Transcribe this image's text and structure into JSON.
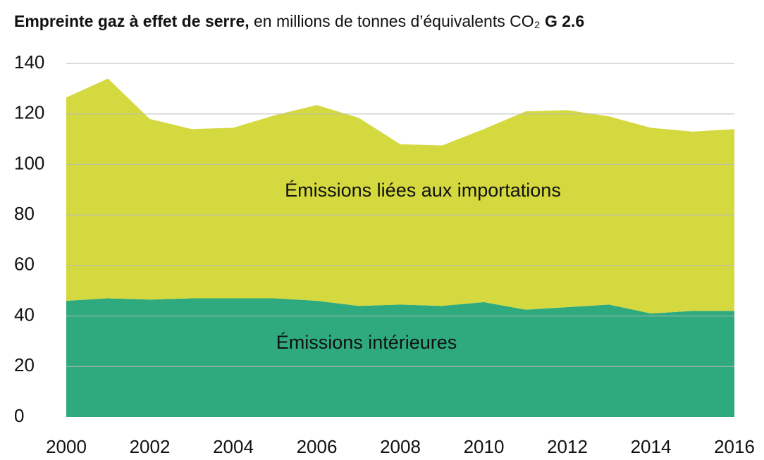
{
  "chart_data": {
    "type": "stacked_area",
    "title_bold": "Empreinte gaz à effet de serre,",
    "title": "en millions de tonnes d’équivalents CO₂",
    "figure_label": "G 2.6",
    "x": [
      2000,
      2001,
      2002,
      2003,
      2004,
      2005,
      2006,
      2007,
      2008,
      2009,
      2010,
      2011,
      2012,
      2013,
      2014,
      2015,
      2016
    ],
    "series": [
      {
        "name": "Émissions intérieures",
        "color": "#2eaa7e",
        "values": [
          46,
          47,
          46.5,
          47,
          47,
          47,
          46,
          44,
          44.5,
          44,
          45.5,
          42.5,
          43.5,
          44.5,
          41,
          42,
          42
        ]
      },
      {
        "name": "Émissions liées aux importations",
        "color": "#d4d93f",
        "values": [
          80.5,
          87,
          71.5,
          67,
          67.5,
          72.5,
          77.5,
          74.5,
          63.5,
          63.5,
          68.5,
          78.5,
          78,
          74.5,
          73.5,
          71,
          72
        ]
      }
    ],
    "xlim": [
      2000,
      2016
    ],
    "xticks": [
      2000,
      2002,
      2004,
      2006,
      2008,
      2010,
      2012,
      2014,
      2016
    ],
    "ylim": [
      0,
      140
    ],
    "yticks": [
      0,
      20,
      40,
      60,
      80,
      100,
      120,
      140
    ],
    "grid": true
  }
}
